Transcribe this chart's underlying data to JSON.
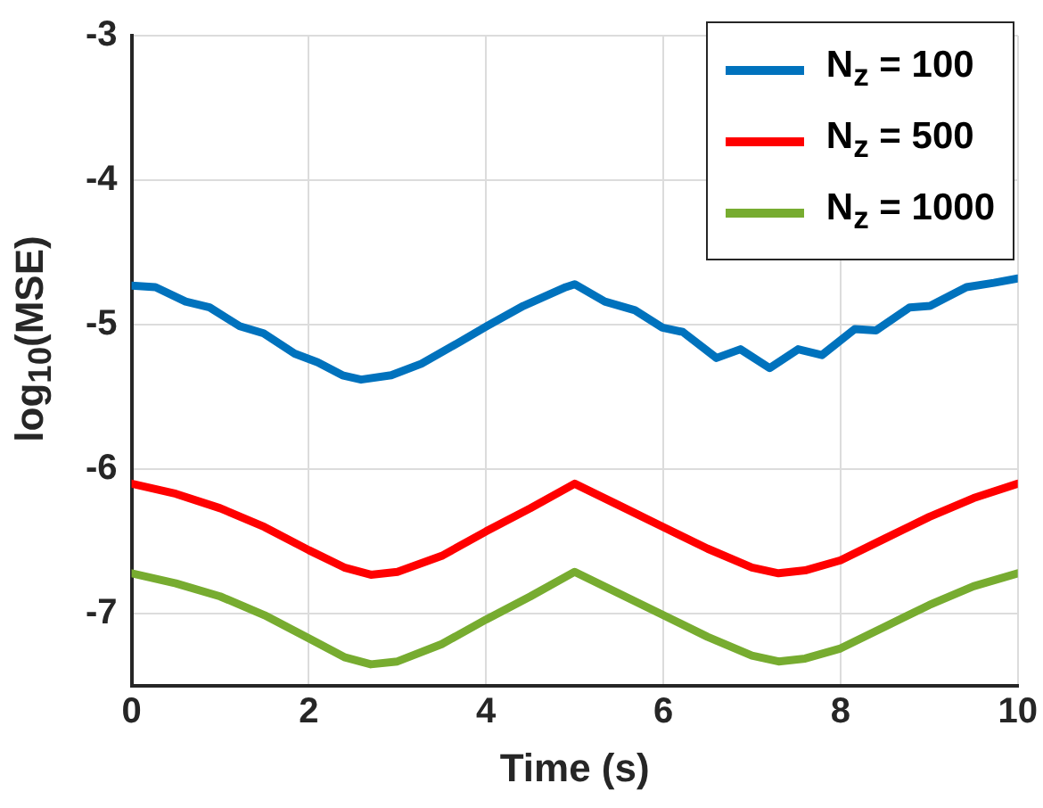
{
  "chart_data": {
    "type": "line",
    "xlabel": "Time (s)",
    "ylabel": "log$_{10}$(MSE)",
    "xlim": [
      0,
      10
    ],
    "xticks": [
      0,
      2,
      4,
      6,
      8,
      10
    ],
    "ylim": [
      -7.5,
      -3
    ],
    "yticks": [
      -7,
      -6,
      -5,
      -4,
      -3
    ],
    "grid": true,
    "legend": "top right",
    "marker": "none",
    "line_style": "solid",
    "series": [
      {
        "name": "N$_{z}$ = 100",
        "color": "#0072bd",
        "x": [
          0,
          0.27,
          0.61,
          0.88,
          1.22,
          1.49,
          1.84,
          2.1,
          2.38,
          2.59,
          2.93,
          3.27,
          3.73,
          4.01,
          4.42,
          4.9,
          5.0,
          5.34,
          5.68,
          5.99,
          6.22,
          6.6,
          6.87,
          7.2,
          7.52,
          7.79,
          8.16,
          8.4,
          8.78,
          9.01,
          9.42,
          9.73,
          10
        ],
        "values": [
          -4.73,
          -4.74,
          -4.84,
          -4.88,
          -5.01,
          -5.06,
          -5.2,
          -5.26,
          -5.35,
          -5.38,
          -5.35,
          -5.27,
          -5.11,
          -5.01,
          -4.87,
          -4.74,
          -4.72,
          -4.84,
          -4.9,
          -5.02,
          -5.05,
          -5.23,
          -5.17,
          -5.3,
          -5.17,
          -5.21,
          -5.03,
          -5.04,
          -4.88,
          -4.87,
          -4.74,
          -4.71,
          -4.68
        ]
      },
      {
        "name": "N$_{z}$ = 500",
        "color": "#ff0000",
        "x": [
          0,
          0.5,
          1,
          1.5,
          2,
          2.4,
          2.7,
          3,
          3.5,
          4,
          4.5,
          5,
          5.5,
          6,
          6.5,
          7,
          7.3,
          7.6,
          8,
          8.5,
          9,
          9.5,
          10
        ],
        "values": [
          -6.1,
          -6.17,
          -6.27,
          -6.4,
          -6.56,
          -6.68,
          -6.73,
          -6.71,
          -6.6,
          -6.43,
          -6.27,
          -6.1,
          -6.25,
          -6.4,
          -6.55,
          -6.68,
          -6.72,
          -6.7,
          -6.63,
          -6.48,
          -6.33,
          -6.2,
          -6.1
        ]
      },
      {
        "name": "N$_{z}$ = 1000",
        "color": "#77ac30",
        "x": [
          0,
          0.5,
          1,
          1.5,
          2,
          2.4,
          2.7,
          3,
          3.5,
          4,
          4.5,
          5,
          5.5,
          6,
          6.5,
          7,
          7.3,
          7.6,
          8,
          8.5,
          9,
          9.5,
          10
        ],
        "values": [
          -6.72,
          -6.79,
          -6.88,
          -7.01,
          -7.17,
          -7.3,
          -7.35,
          -7.33,
          -7.21,
          -7.04,
          -6.88,
          -6.71,
          -6.86,
          -7.01,
          -7.16,
          -7.29,
          -7.33,
          -7.31,
          -7.24,
          -7.09,
          -6.94,
          -6.81,
          -6.72
        ]
      }
    ]
  }
}
